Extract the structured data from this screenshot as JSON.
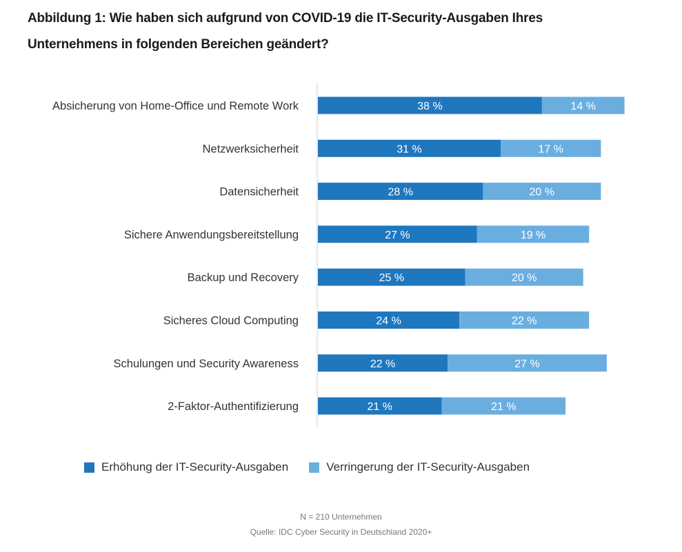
{
  "chart_data": {
    "type": "bar",
    "orientation": "horizontal",
    "stacked": true,
    "title": "Abbildung 1: Wie haben sich aufgrund von COVID-19 die IT-Security-Ausgaben Ihres Unternehmens in folgenden Bereichen geändert?",
    "title_lines": [
      "Abbildung 1: Wie haben sich aufgrund von COVID-19 die IT-Security-Ausgaben Ihres",
      "Unternehmens in folgenden Bereichen geändert?"
    ],
    "categories": [
      "Absicherung von Home-Office und Remote Work",
      "Netzwerksicherheit",
      "Datensicherheit",
      "Sichere Anwendungsbereitstellung",
      "Backup und Recovery",
      "Sicheres Cloud Computing",
      "Schulungen und Security Awareness",
      "2-Faktor-Authentifizierung"
    ],
    "series": [
      {
        "name": "Erhöhung der IT-Security-Ausgaben",
        "color": "#1f77be",
        "values": [
          38,
          31,
          28,
          27,
          25,
          24,
          22,
          21
        ]
      },
      {
        "name": "Verringerung der IT-Security-Ausgaben",
        "color": "#6aaee0",
        "values": [
          14,
          17,
          20,
          19,
          20,
          22,
          27,
          21
        ]
      }
    ],
    "value_suffix": " %",
    "xlabel": "",
    "ylabel": "",
    "grid": false,
    "legend_position": "bottom",
    "notes": [
      "N = 210 Unternehmen",
      "Quelle: IDC Cyber Security in Deutschland 2020+"
    ]
  }
}
